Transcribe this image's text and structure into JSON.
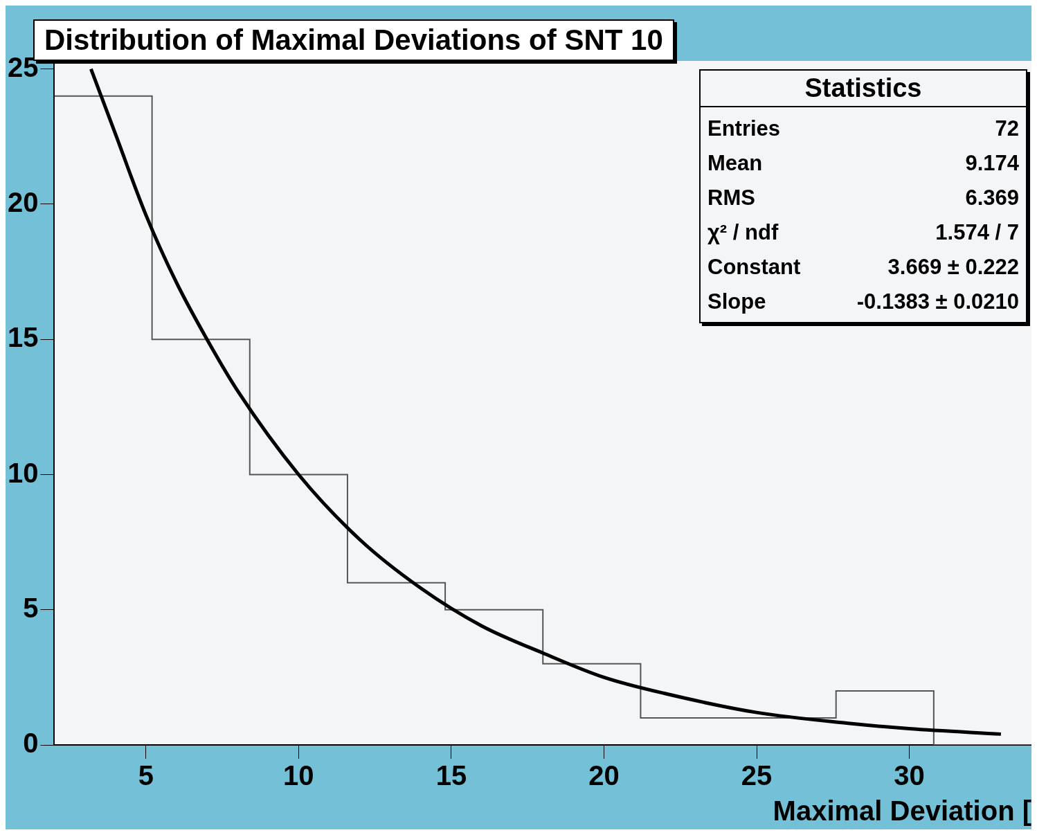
{
  "chart_data": {
    "type": "histogram",
    "title": "Distribution of Maximal Deviations of SNT 10",
    "xlabel": "Maximal Deviation [",
    "bins": [
      2,
      5.2,
      8.4,
      11.6,
      14.8,
      18,
      21.2,
      24.4,
      27.6,
      30.8,
      34
    ],
    "values": [
      24,
      15,
      10,
      6,
      5,
      3,
      1,
      1,
      2,
      0
    ],
    "color": "#555555",
    "series": [
      {
        "type": "line",
        "color": "#000000",
        "x": [
          3.2,
          4,
          5,
          6,
          7,
          8,
          10,
          12,
          14,
          16,
          18,
          20,
          22,
          25,
          28,
          30,
          33
        ],
        "values": [
          25,
          22.6,
          19.6,
          17.1,
          15,
          13.1,
          10,
          7.6,
          5.8,
          4.4,
          3.4,
          2.5,
          1.9,
          1.2,
          0.8,
          0.6,
          0.4
        ]
      }
    ],
    "xlim": [
      2,
      34
    ],
    "xticks": [
      5,
      10,
      15,
      20,
      25,
      30
    ],
    "ylim": [
      0,
      25.3
    ],
    "yticks": [
      0,
      5,
      10,
      15,
      20,
      25
    ],
    "annotations": [
      "Statistics",
      "Entries\t72",
      "Mean\t9.174",
      "RMS\t6.369",
      "χ² / ndf\t1.574 / 7",
      "Constant\t3.669 ± 0.222",
      "Slope\t-0.1383 ± 0.0210"
    ]
  }
}
